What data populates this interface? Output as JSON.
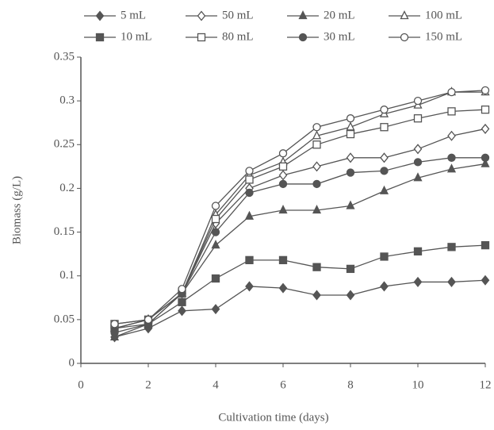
{
  "chart_data": {
    "type": "line",
    "x_label": "Cultivation time (days)",
    "y_label": "Biomass (g/L)",
    "x": [
      1,
      2,
      3,
      4,
      5,
      6,
      7,
      8,
      9,
      10,
      11,
      12
    ],
    "xlim": [
      0,
      12
    ],
    "xticks": [
      0,
      2,
      4,
      6,
      8,
      10,
      12
    ],
    "ylim": [
      0,
      0.35
    ],
    "yticks": [
      0,
      0.05,
      0.1,
      0.15,
      0.2,
      0.25,
      0.3,
      0.35
    ],
    "series": [
      {
        "name": "5 mL",
        "color": "#555555",
        "marker": "diamond-filled",
        "values": [
          0.03,
          0.04,
          0.06,
          0.062,
          0.088,
          0.086,
          0.078,
          0.078,
          0.088,
          0.093,
          0.093,
          0.095
        ]
      },
      {
        "name": "50 mL",
        "color": "#555555",
        "marker": "diamond-open",
        "values": [
          0.04,
          0.05,
          0.08,
          0.16,
          0.2,
          0.215,
          0.225,
          0.235,
          0.235,
          0.245,
          0.26,
          0.268
        ]
      },
      {
        "name": "20 mL",
        "color": "#555555",
        "marker": "triangle-filled",
        "values": [
          0.03,
          0.045,
          0.08,
          0.135,
          0.168,
          0.175,
          0.175,
          0.18,
          0.197,
          0.212,
          0.222,
          0.228
        ]
      },
      {
        "name": "100 mL",
        "color": "#555555",
        "marker": "triangle-open",
        "values": [
          0.04,
          0.05,
          0.08,
          0.17,
          0.215,
          0.23,
          0.26,
          0.27,
          0.285,
          0.295,
          0.31,
          0.31
        ]
      },
      {
        "name": "10 mL",
        "color": "#555555",
        "marker": "square-filled",
        "values": [
          0.04,
          0.045,
          0.07,
          0.097,
          0.118,
          0.118,
          0.11,
          0.108,
          0.122,
          0.128,
          0.133,
          0.135
        ]
      },
      {
        "name": "80 mL",
        "color": "#555555",
        "marker": "square-open",
        "values": [
          0.045,
          0.05,
          0.08,
          0.165,
          0.21,
          0.225,
          0.25,
          0.262,
          0.27,
          0.28,
          0.288,
          0.29
        ]
      },
      {
        "name": "30 mL",
        "color": "#555555",
        "marker": "circle-filled",
        "values": [
          0.035,
          0.045,
          0.08,
          0.15,
          0.195,
          0.205,
          0.205,
          0.218,
          0.22,
          0.23,
          0.235,
          0.235
        ]
      },
      {
        "name": "150 mL",
        "color": "#555555",
        "marker": "circle-open",
        "values": [
          0.045,
          0.05,
          0.085,
          0.18,
          0.22,
          0.24,
          0.27,
          0.28,
          0.29,
          0.3,
          0.31,
          0.312
        ]
      }
    ]
  }
}
